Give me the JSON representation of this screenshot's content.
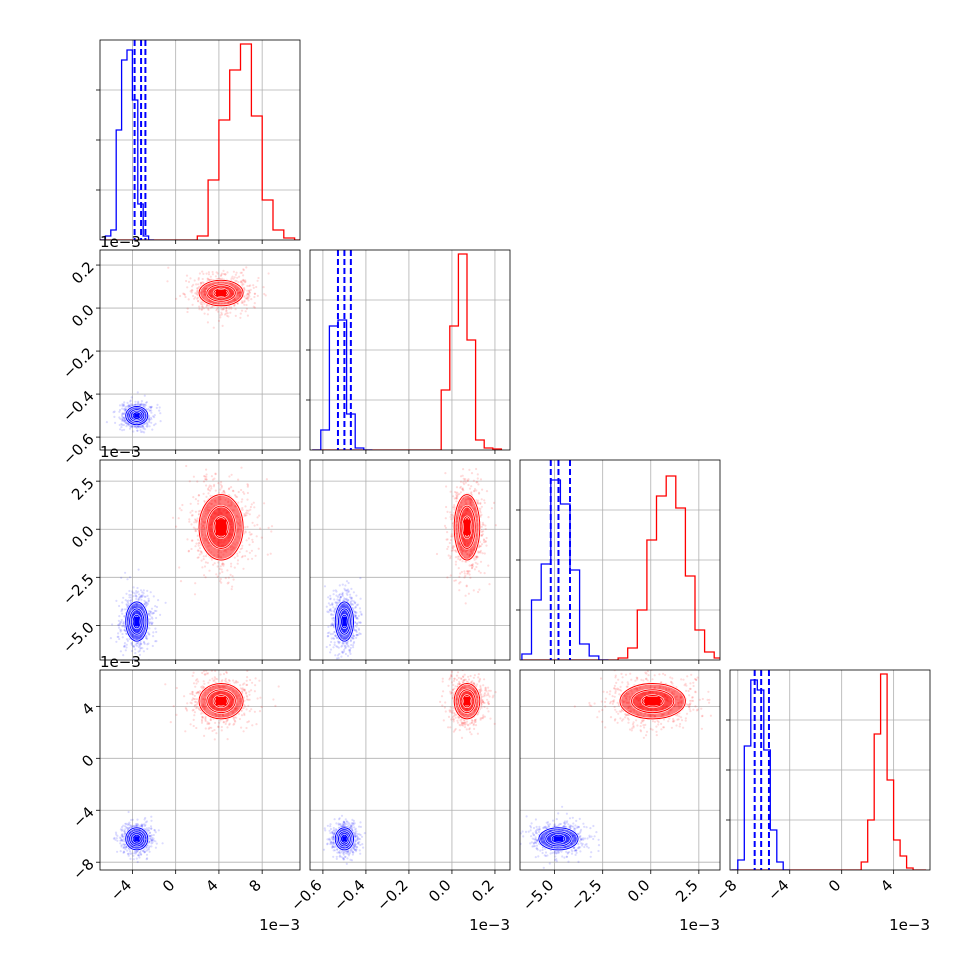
{
  "chart_data": {
    "type": "corner",
    "grid": true,
    "parameters": [
      {
        "range": [
          -7,
          11.5
        ],
        "ticks": [
          -4,
          0,
          4,
          8
        ],
        "tick_labels": [
          "−4",
          "0",
          "4",
          "8"
        ],
        "offset_label": "1e−3"
      },
      {
        "range": [
          -0.66,
          0.27
        ],
        "ticks": [
          -0.6,
          -0.4,
          -0.2,
          0.0,
          0.2
        ],
        "tick_labels": [
          "−0.6",
          "−0.4",
          "−0.2",
          "0.0",
          "0.2"
        ],
        "offset_label": "1e−3"
      },
      {
        "range": [
          -6.8,
          3.6
        ],
        "ticks": [
          -5.0,
          -2.5,
          0.0,
          2.5
        ],
        "tick_labels": [
          "−5.0",
          "−2.5",
          "0.0",
          "2.5"
        ],
        "offset_label": "1e−3"
      },
      {
        "range": [
          -8.6,
          6.8
        ],
        "ticks": [
          -8,
          -4,
          0,
          4
        ],
        "tick_labels": [
          "−8",
          "−4",
          "0",
          "4"
        ],
        "offset_label": "1e−3"
      }
    ],
    "series": [
      {
        "color": "#ff0000",
        "mean": [
          4.2,
          0.07,
          0.1,
          4.4
        ],
        "std": [
          1.2,
          0.035,
          1.0,
          0.8
        ],
        "hist": [
          {
            "start": -7,
            "width": 1,
            "counts": [
              0,
              0,
              0,
              0,
              0,
              0,
              0,
              0,
              0,
              0.02,
              0.3,
              0.6,
              0.85,
              0.98,
              0.62,
              0.2,
              0.05,
              0.01,
              0
            ]
          },
          {
            "start": -0.65,
            "width": 0.04,
            "counts": [
              0,
              0,
              0,
              0,
              0,
              0,
              0,
              0,
              0,
              0,
              0,
              0,
              0,
              0,
              0,
              0.3,
              0.62,
              0.98,
              0.55,
              0.05,
              0.01,
              0.005
            ]
          },
          {
            "start": -6.7,
            "width": 0.5,
            "counts": [
              0,
              0,
              0,
              0,
              0,
              0,
              0,
              0,
              0,
              0,
              0.01,
              0.06,
              0.25,
              0.6,
              0.82,
              0.92,
              0.76,
              0.42,
              0.15,
              0.04,
              0.01,
              0
            ]
          },
          {
            "start": -8.5,
            "width": 0.5,
            "counts": [
              0,
              0,
              0,
              0,
              0,
              0,
              0,
              0,
              0,
              0,
              0,
              0,
              0,
              0,
              0,
              0,
              0,
              0,
              0,
              0,
              0.04,
              0.25,
              0.68,
              0.98,
              0.45,
              0.15,
              0.07,
              0.01,
              0,
              0
            ]
          }
        ]
      },
      {
        "color": "#0000ff",
        "mean": [
          -3.6,
          -0.5,
          -4.8,
          -6.2
        ],
        "std": [
          0.6,
          0.025,
          0.6,
          0.5
        ],
        "quantiles": [
          [
            -3.8,
            -3.2,
            -2.8
          ],
          [
            -0.53,
            -0.5,
            -0.47
          ],
          [
            -5.2,
            -4.8,
            -4.2
          ],
          [
            -6.7,
            -6.2,
            -5.6
          ]
        ],
        "hist": [
          {
            "start": -7,
            "width": 0.5,
            "counts": [
              0,
              0.02,
              0.05,
              0.55,
              0.9,
              0.95,
              0.7,
              0.18,
              0.02,
              0
            ]
          },
          {
            "start": -0.65,
            "width": 0.04,
            "counts": [
              0,
              0.1,
              0.62,
              0.65,
              0.18,
              0.01,
              0
            ]
          },
          {
            "start": -6.7,
            "width": 0.5,
            "counts": [
              0.03,
              0.3,
              0.48,
              0.9,
              0.78,
              0.45,
              0.08,
              0.02,
              0
            ]
          },
          {
            "start": -8.5,
            "width": 0.5,
            "counts": [
              0,
              0.05,
              0.62,
              0.95,
              0.9,
              0.6,
              0.2,
              0.04,
              0
            ]
          }
        ]
      }
    ]
  }
}
